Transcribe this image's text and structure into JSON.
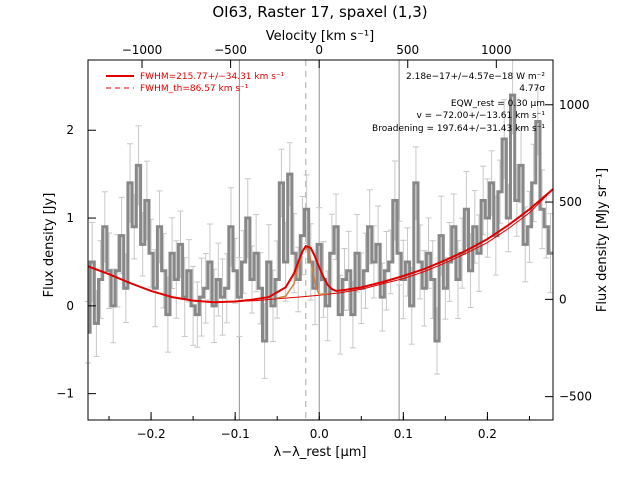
{
  "chart_data": {
    "type": "line",
    "title": "OI63, Raster 17, spaxel (1,3)",
    "xlabel": "λ−λ_rest [μm]",
    "ylabel": "Flux density [Jy]",
    "top_xlabel": "Velocity [km s⁻¹]",
    "right_ylabel": "Flux density [MJy sr⁻¹]",
    "xlim": [
      -0.275,
      0.278
    ],
    "ylim": [
      -1.3,
      2.8
    ],
    "right_ylim": [
      -620,
      1230
    ],
    "top_xlim": [
      -1305,
      1320
    ],
    "x_ticks": [
      -0.2,
      -0.1,
      0.0,
      0.1,
      0.2
    ],
    "x_tick_labels": [
      "−0.2",
      "−0.1",
      "0.0",
      "0.1",
      "0.2"
    ],
    "y_ticks": [
      -1,
      0,
      1,
      2
    ],
    "y_tick_labels": [
      "−1",
      "0",
      "1",
      "2"
    ],
    "top_x_ticks": [
      -1000,
      -500,
      0,
      500,
      1000
    ],
    "top_x_tick_labels": [
      "−1000",
      "−500",
      "0",
      "500",
      "1000"
    ],
    "right_y_ticks": [
      -500,
      0,
      500,
      1000
    ],
    "right_y_tick_labels": [
      "−500",
      "0",
      "500",
      "1000"
    ],
    "grid": false,
    "legend_placement": "top-left",
    "legend": [
      {
        "label": "FWHM=215.77+/−34.31 km s⁻¹",
        "style": "solid"
      },
      {
        "label": "FWHM_th=86.57 km s⁻¹",
        "style": "dashed"
      }
    ],
    "annotations": [
      "2.18e−17+/−4.57e−18 W m⁻²",
      "4.77σ",
      "EQW_rest = 0.30 μm",
      "v = −72.00+/−13.61 km s⁻¹",
      "Broadening = 197.64+/−31.43 km s⁻¹"
    ],
    "vertical_lines": {
      "solid": [
        -0.095,
        0.0,
        0.095
      ],
      "dashed": [
        -0.016
      ]
    },
    "series": [
      {
        "name": "data",
        "x": [
          -0.275,
          -0.27,
          -0.265,
          -0.26,
          -0.255,
          -0.25,
          -0.245,
          -0.24,
          -0.235,
          -0.23,
          -0.225,
          -0.22,
          -0.215,
          -0.21,
          -0.205,
          -0.2,
          -0.195,
          -0.19,
          -0.185,
          -0.18,
          -0.175,
          -0.17,
          -0.165,
          -0.16,
          -0.155,
          -0.15,
          -0.145,
          -0.14,
          -0.135,
          -0.13,
          -0.125,
          -0.12,
          -0.115,
          -0.11,
          -0.105,
          -0.1,
          -0.095,
          -0.09,
          -0.085,
          -0.08,
          -0.075,
          -0.07,
          -0.065,
          -0.06,
          -0.055,
          -0.05,
          -0.045,
          -0.04,
          -0.035,
          -0.03,
          -0.025,
          -0.02,
          -0.015,
          -0.01,
          -0.005,
          0.0,
          0.005,
          0.01,
          0.015,
          0.02,
          0.025,
          0.03,
          0.035,
          0.04,
          0.045,
          0.05,
          0.055,
          0.06,
          0.065,
          0.07,
          0.075,
          0.08,
          0.085,
          0.09,
          0.095,
          0.1,
          0.105,
          0.11,
          0.115,
          0.12,
          0.125,
          0.13,
          0.135,
          0.14,
          0.145,
          0.15,
          0.155,
          0.16,
          0.165,
          0.17,
          0.175,
          0.18,
          0.185,
          0.19,
          0.195,
          0.2,
          0.205,
          0.21,
          0.215,
          0.22,
          0.225,
          0.23,
          0.235,
          0.24,
          0.245,
          0.25,
          0.255,
          0.26,
          0.265,
          0.27,
          0.275
        ],
        "y": [
          -0.3,
          0.5,
          -0.2,
          0.3,
          0.9,
          0.4,
          0.0,
          0.4,
          0.8,
          0.2,
          1.4,
          0.9,
          1.6,
          0.7,
          1.2,
          0.6,
          0.2,
          0.9,
          0.4,
          -0.1,
          0.6,
          0.3,
          0.7,
          0.1,
          0.4,
          0.0,
          -0.1,
          0.1,
          0.2,
          0.5,
          0.0,
          0.3,
          0.1,
          0.2,
          0.9,
          0.4,
          0.1,
          0.5,
          1.0,
          0.3,
          0.6,
          0.2,
          -0.4,
          0.5,
          0.0,
          0.3,
          1.4,
          0.5,
          1.5,
          0.6,
          0.3,
          0.8,
          1.1,
          0.5,
          0.2,
          0.7,
          0.3,
          0.0,
          0.6,
          0.9,
          -0.1,
          0.3,
          0.4,
          -0.1,
          0.6,
          0.2,
          0.4,
          0.9,
          0.5,
          0.7,
          0.1,
          0.4,
          0.5,
          1.2,
          0.6,
          0.3,
          0.5,
          0.0,
          1.4,
          0.5,
          0.2,
          0.6,
          0.3,
          -0.4,
          0.8,
          0.2,
          0.5,
          0.9,
          0.3,
          0.6,
          1.1,
          0.4,
          0.9,
          0.6,
          1.2,
          1.0,
          1.4,
          0.8,
          1.3,
          1.9,
          1.0,
          2.4,
          1.2,
          1.6,
          0.7,
          0.9,
          1.4,
          2.1,
          1.1,
          0.9,
          0.6
        ]
      },
      {
        "name": "fit",
        "x": [
          -0.275,
          -0.25,
          -0.225,
          -0.2,
          -0.175,
          -0.15,
          -0.125,
          -0.1,
          -0.08,
          -0.06,
          -0.04,
          -0.03,
          -0.025,
          -0.02,
          -0.016,
          -0.01,
          -0.005,
          0.0,
          0.005,
          0.01,
          0.015,
          0.02,
          0.03,
          0.05,
          0.075,
          0.1,
          0.125,
          0.15,
          0.175,
          0.2,
          0.225,
          0.25,
          0.278
        ],
        "y": [
          0.45,
          0.36,
          0.26,
          0.17,
          0.1,
          0.06,
          0.04,
          0.05,
          0.07,
          0.1,
          0.21,
          0.37,
          0.5,
          0.62,
          0.68,
          0.66,
          0.56,
          0.44,
          0.33,
          0.24,
          0.19,
          0.17,
          0.18,
          0.21,
          0.27,
          0.34,
          0.42,
          0.52,
          0.63,
          0.76,
          0.92,
          1.1,
          1.33
        ]
      },
      {
        "name": "continuum",
        "x": [
          -0.275,
          -0.25,
          -0.225,
          -0.2,
          -0.175,
          -0.15,
          -0.125,
          -0.1,
          -0.075,
          -0.05,
          -0.025,
          0.0,
          0.025,
          0.05,
          0.075,
          0.1,
          0.125,
          0.15,
          0.175,
          0.2,
          0.225,
          0.25,
          0.278
        ],
        "y": [
          0.45,
          0.36,
          0.26,
          0.17,
          0.1,
          0.06,
          0.04,
          0.05,
          0.06,
          0.08,
          0.1,
          0.12,
          0.15,
          0.19,
          0.25,
          0.31,
          0.39,
          0.49,
          0.6,
          0.72,
          0.88,
          1.06,
          1.33
        ]
      },
      {
        "name": "thermal",
        "x": [
          -0.05,
          -0.04,
          -0.03,
          -0.025,
          -0.02,
          -0.016,
          -0.012,
          -0.008,
          -0.004,
          0.0,
          0.01
        ],
        "y": [
          0.09,
          0.11,
          0.25,
          0.45,
          0.62,
          0.67,
          0.6,
          0.42,
          0.22,
          0.13,
          0.14
        ]
      }
    ],
    "colors": {
      "data": "#888888",
      "fit": "#e00000",
      "thermal": "#d08040",
      "lines": "#909090"
    }
  }
}
